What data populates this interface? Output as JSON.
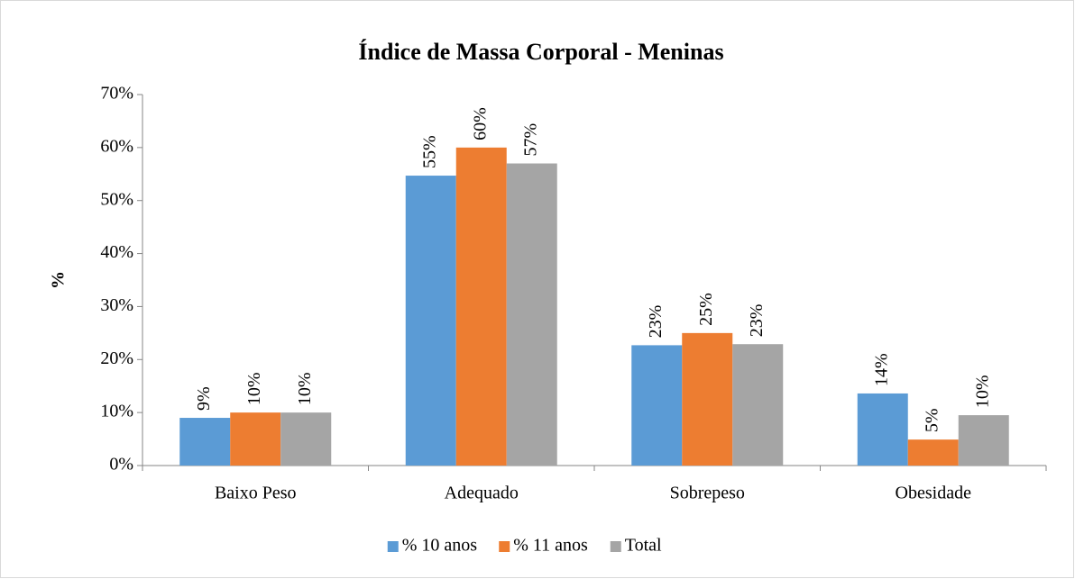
{
  "chart_data": {
    "type": "bar",
    "title": "Índice de Massa Corporal - Meninas",
    "y_label": "%",
    "categories": [
      "Baixo Peso",
      "Adequado",
      "Sobrepeso",
      "Obesidade"
    ],
    "series": [
      {
        "name": "% 10 anos",
        "color": "#5b9bd5",
        "values": [
          9,
          54.7,
          22.7,
          13.6
        ],
        "value_labels": [
          "9%",
          "55%",
          "23%",
          "14%"
        ]
      },
      {
        "name": "% 11 anos",
        "color": "#ed7d31",
        "values": [
          10,
          60,
          25,
          4.9
        ],
        "value_labels": [
          "10%",
          "60%",
          "25%",
          "5%"
        ]
      },
      {
        "name": "Total",
        "color": "#a5a5a5",
        "values": [
          10,
          57,
          22.9,
          9.5
        ],
        "value_labels": [
          "10%",
          "57%",
          "23%",
          "10%"
        ]
      }
    ],
    "ylim": [
      0,
      70
    ],
    "yticks": [
      {
        "value": 0,
        "label": "0%"
      },
      {
        "value": 10,
        "label": "10%"
      },
      {
        "value": 20,
        "label": "20%"
      },
      {
        "value": 30,
        "label": "30%"
      },
      {
        "value": 40,
        "label": "40%"
      },
      {
        "value": 50,
        "label": "50%"
      },
      {
        "value": 60,
        "label": "60%"
      },
      {
        "value": 70,
        "label": "70%"
      }
    ],
    "grid": false,
    "legend": "bottom"
  }
}
